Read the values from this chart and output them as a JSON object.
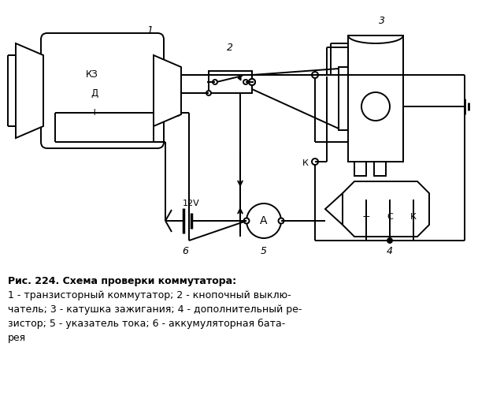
{
  "bg_color": "#ffffff",
  "line_color": "#000000",
  "fig_width": 6.4,
  "fig_height": 5.3,
  "caption_line1": "Рис. 224. Схема проверки коммутатора:",
  "caption_line2": "1 - транзисторный коммутатор; 2 - кнопочный выклю-",
  "caption_line3": "чатель; 3 - катушка зажигания; 4 - дополнительный ре-",
  "caption_line4": "зистор; 5 - указатель тока; 6 - аккумуляторная бата-",
  "caption_line5": "рея"
}
